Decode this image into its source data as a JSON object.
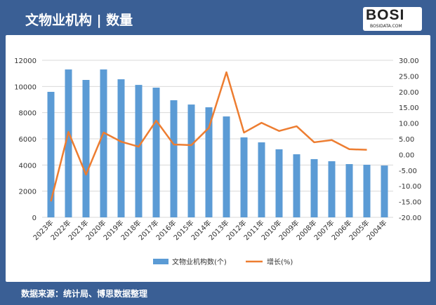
{
  "header": {
    "title": "文物业机构 | 数量",
    "logo": "BOSI",
    "logo_sub": "BOSIDATA.COM"
  },
  "footer": {
    "source": "数据来源：统计局、博思数据整理"
  },
  "chart_data": {
    "type": "bar+line",
    "categories": [
      "2023年",
      "2022年",
      "2021年",
      "2020年",
      "2019年",
      "2018年",
      "2017年",
      "2016年",
      "2015年",
      "2014年",
      "2013年",
      "2012年",
      "2011年",
      "2010年",
      "2009年",
      "2008年",
      "2007年",
      "2006年",
      "2005年",
      "2004年"
    ],
    "series": [
      {
        "name": "文物业机构数(个)",
        "type": "bar",
        "axis": "left",
        "color": "#5b9bd5",
        "values": [
          9590,
          11300,
          10500,
          11300,
          10550,
          10120,
          9910,
          8950,
          8620,
          8410,
          7710,
          6110,
          5730,
          5200,
          4820,
          4450,
          4290,
          4070,
          4020,
          3960
        ]
      },
      {
        "name": "增长(%)",
        "type": "line",
        "axis": "right",
        "color": "#ed7d31",
        "values": [
          -14.9,
          7.2,
          -6.4,
          7.0,
          4.1,
          2.5,
          10.8,
          3.2,
          3.0,
          8.5,
          26.2,
          7.0,
          10.1,
          7.5,
          9.0,
          3.9,
          4.6,
          1.7,
          1.5,
          null
        ]
      }
    ],
    "left_axis": {
      "ylim": [
        0,
        12000
      ],
      "ticks": [
        "0",
        "2000",
        "4000",
        "6000",
        "8000",
        "10000",
        "12000"
      ]
    },
    "right_axis": {
      "ylim": [
        -20,
        30
      ],
      "ticks": [
        "-20.00",
        "-15.00",
        "-10.00",
        "-5.00",
        "0.00",
        "5.00",
        "10.00",
        "15.00",
        "20.00",
        "25.00",
        "30.00"
      ]
    },
    "grid": true,
    "legend": "bottom"
  }
}
